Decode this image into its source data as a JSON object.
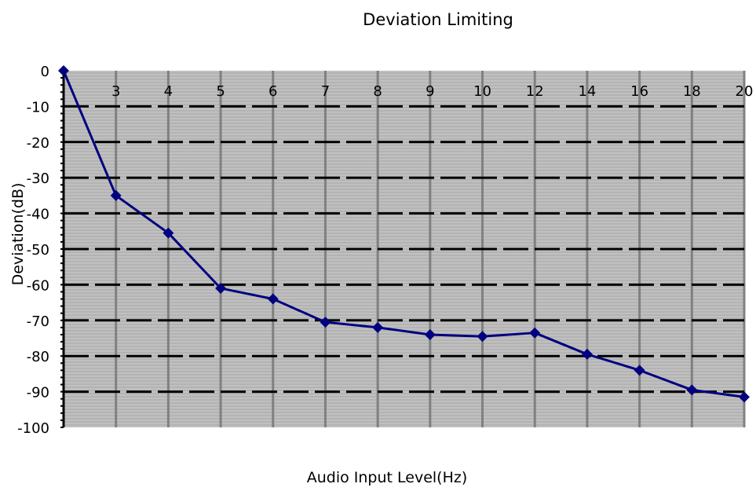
{
  "chart_data": {
    "type": "line",
    "title": "Deviation Limiting",
    "xlabel": "Audio Input Level(Hz)",
    "ylabel": "Deviation(dB)",
    "categories": [
      "",
      "3",
      "4",
      "5",
      "6",
      "7",
      "8",
      "9",
      "10",
      "12",
      "14",
      "16",
      "18",
      "20"
    ],
    "ylim": [
      -100,
      0
    ],
    "yticks": [
      0,
      -10,
      -20,
      -30,
      -40,
      -50,
      -60,
      -70,
      -80,
      -90,
      -100
    ],
    "grid": true,
    "series": [
      {
        "values": [
          0,
          -35,
          -45.5,
          -61,
          -64,
          -70.5,
          -72,
          -74,
          -74.5,
          -73.5,
          -79.5,
          -84,
          -89.5,
          -91.5
        ],
        "color": "#000080",
        "marker": "diamond"
      }
    ],
    "colors": {
      "plot_background": "#c0c0c0",
      "hatch_line": "#a6a6a6",
      "vertical_grid": "#808080",
      "horizontal_grid": "#000000",
      "series": "#000080"
    }
  }
}
